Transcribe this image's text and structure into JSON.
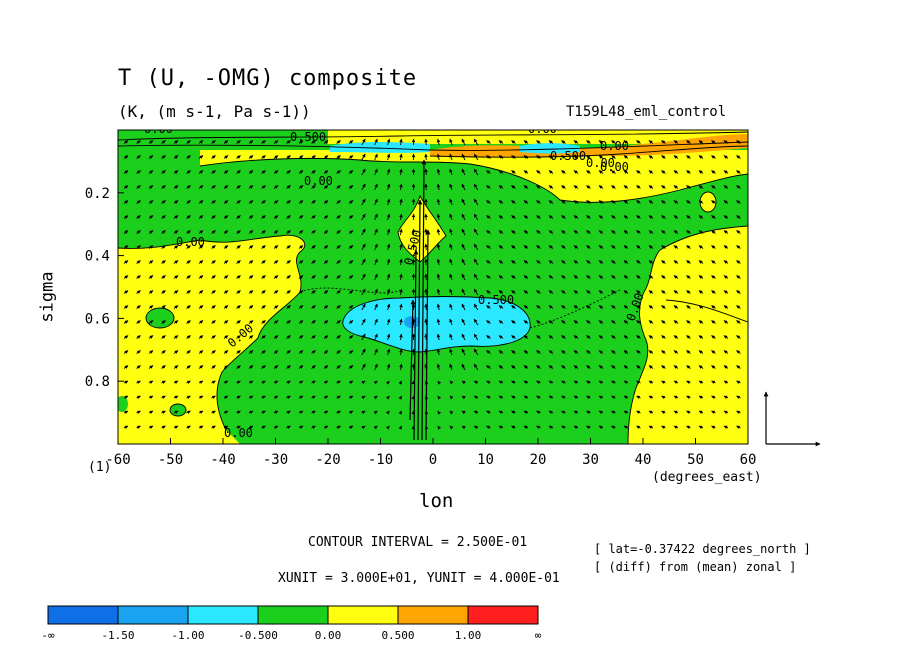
{
  "header": {
    "title": "T (U, -OMG) composite",
    "subtitle": "(K, (m s-1, Pa s-1))",
    "run_name": "T159L48_eml_control"
  },
  "axes": {
    "xlabel": "lon",
    "xunits": "(degrees_east)",
    "ylabel": "sigma",
    "bottom_level_label": "(1)"
  },
  "footer": {
    "contour_interval": "CONTOUR INTERVAL = 2.500E-01",
    "unit_vectors": "XUNIT = 3.000E+01, YUNIT = 4.000E-01",
    "lat_note": "[ lat=-0.37422 degrees_north ]",
    "diff_note": "[ (diff) from (mean) zonal ]"
  },
  "colors": {
    "ocean_blue": "#0f6fe8",
    "mid_blue": "#1aa3f0",
    "cyan": "#2ae8ff",
    "green": "#1ccf1c",
    "yellow": "#ffff10",
    "orange": "#ffa500",
    "red": "#ff1f1f"
  },
  "chart_data": {
    "type": "heatmap",
    "x_range": [
      -60,
      60
    ],
    "y_range": [
      1.0,
      0.0
    ],
    "x_ticks": [
      "-60",
      "-50",
      "-40",
      "-30",
      "-20",
      "-10",
      "0",
      "10",
      "20",
      "30",
      "40",
      "50",
      "60"
    ],
    "y_ticks": [
      "0.2",
      "0.4",
      "0.6",
      "0.8"
    ],
    "colorbar": {
      "labels": [
        "-∞",
        "-1.50",
        "-1.00",
        "-0.500",
        "0.00",
        "0.500",
        "1.00",
        "∞"
      ],
      "bins": [
        {
          "range": "-∞ to -1.50",
          "color": "#0f6fe8"
        },
        {
          "range": "-1.50 to -1.00",
          "color": "#1aa3f0"
        },
        {
          "range": "-1.00 to -0.500",
          "color": "#2ae8ff"
        },
        {
          "range": "-0.500 to 0.00",
          "color": "#1ccf1c"
        },
        {
          "range": "0.00 to 0.500",
          "color": "#ffff10"
        },
        {
          "range": "0.500 to 1.00",
          "color": "#ffa500"
        },
        {
          "range": "1.00 to ∞",
          "color": "#ff1f1f"
        }
      ]
    },
    "contour_labels": [
      "0.00",
      "0.500",
      "0.500",
      "0.500",
      "0.00",
      "0.00",
      "0.00",
      "0.00",
      "0.00",
      "0.00",
      "0.500",
      "0.00",
      "0.00",
      "0.00"
    ],
    "vector_field": {
      "x_unit": 30.0,
      "y_unit": 0.4,
      "note": "arrows over the full domain; strong upward arrows near lon -3 to -2"
    }
  }
}
